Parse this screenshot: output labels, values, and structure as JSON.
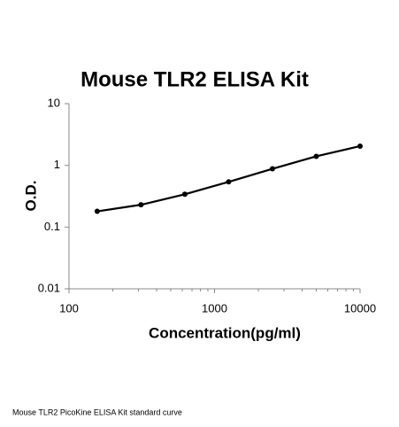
{
  "chart_data": {
    "type": "line",
    "title": "Mouse TLR2 ELISA Kit",
    "x_label": "Concentration(pg/ml)",
    "y_label": "O.D.",
    "x": [
      156.25,
      312.5,
      625,
      1250,
      2500,
      5000,
      10000
    ],
    "series": [
      {
        "color": "#000000",
        "values": [
          0.18,
          0.23,
          0.34,
          0.54,
          0.88,
          1.4,
          2.05
        ]
      }
    ],
    "xlim": [
      100,
      10000
    ],
    "xticks": [
      100,
      1000,
      10000
    ],
    "xlog": true,
    "ylim": [
      0.01,
      10
    ],
    "yticks": [
      0.01,
      0.1,
      1,
      10
    ],
    "ylog": true,
    "caption": "Mouse TLR2 PicoKine ELISA Kit standard curve"
  }
}
